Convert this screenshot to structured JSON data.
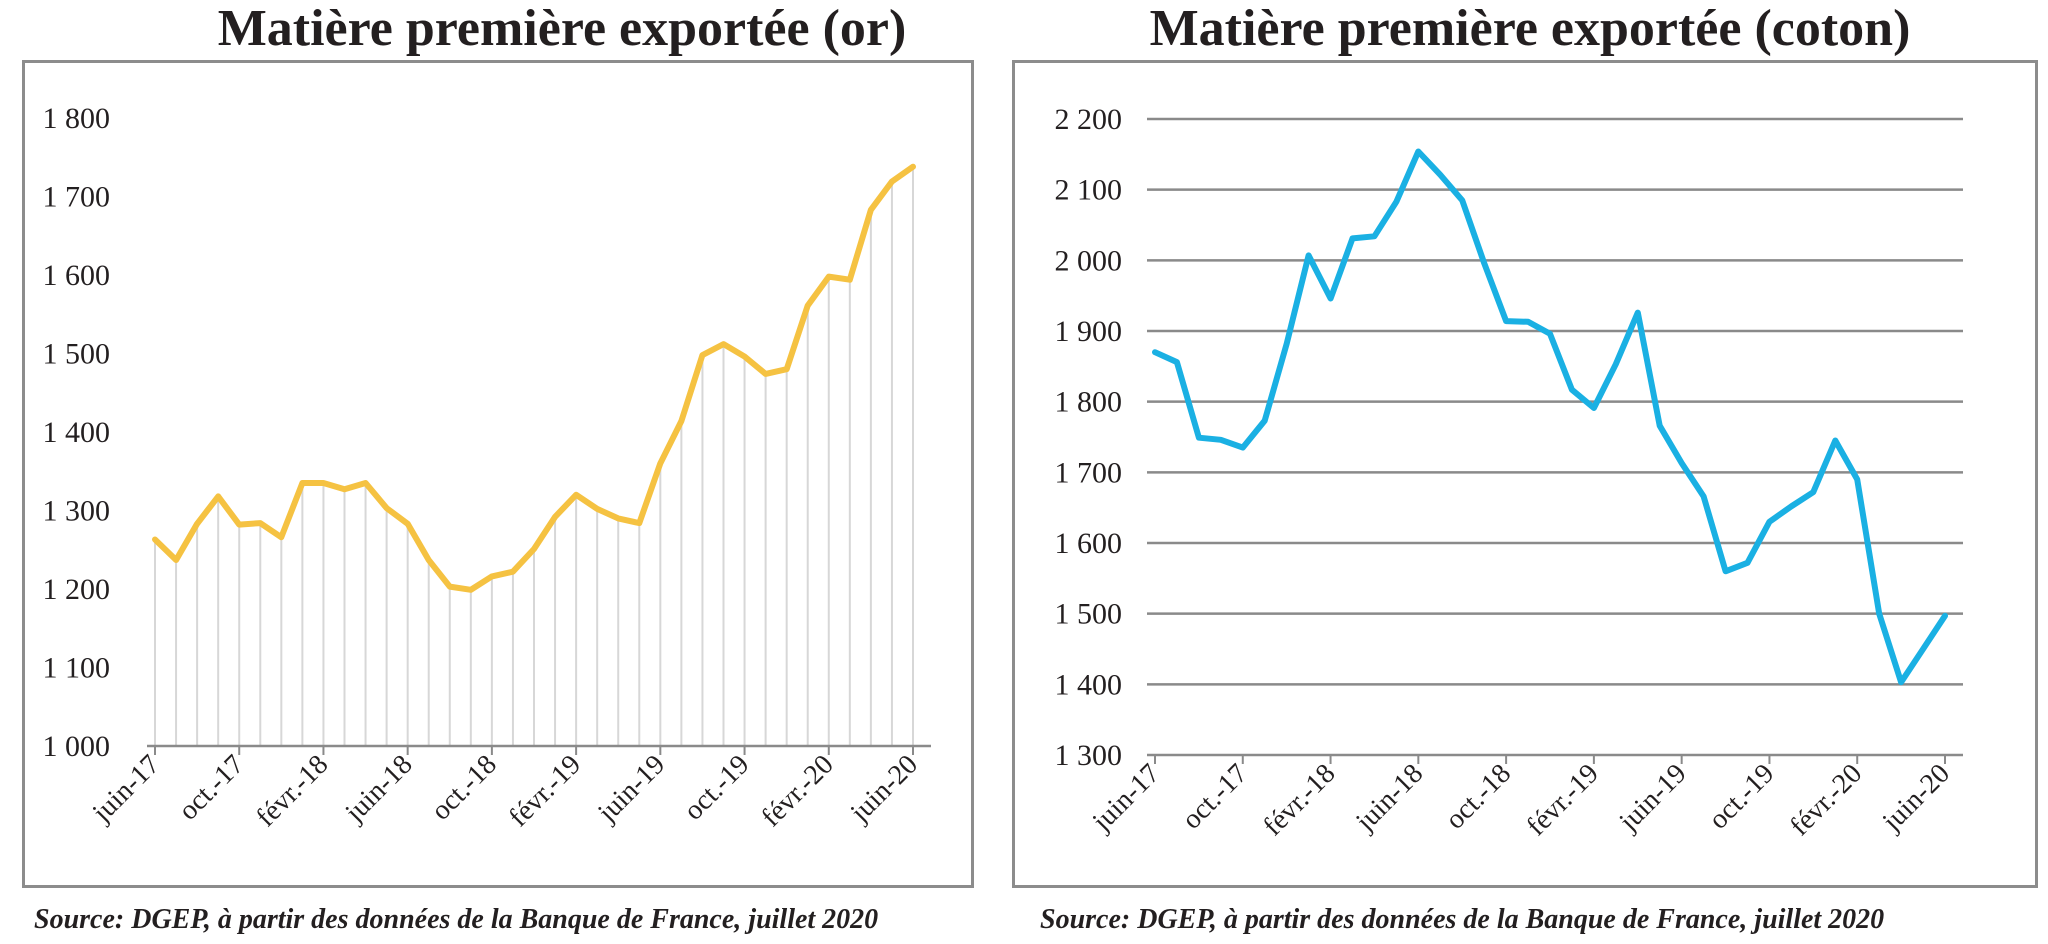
{
  "charts": [
    {
      "title": "Matière première exportée (or)",
      "source": "Source: DGEP, à partir des données de la Banque de France, juillet 2020"
    },
    {
      "title": "Matière première exportée (coton)",
      "source": "Source: DGEP, à partir des données de la Banque de France, juillet 2020"
    }
  ],
  "chart_data": [
    {
      "type": "line",
      "title": "Matière première exportée (or)",
      "xlabel": "",
      "ylabel": "",
      "ylim": [
        1000,
        1800
      ],
      "y_ticks": [
        1000,
        1100,
        1200,
        1300,
        1400,
        1500,
        1600,
        1700,
        1800
      ],
      "y_tick_labels": [
        "1 000",
        "1 100",
        "1 200",
        "1 300",
        "1 400",
        "1 500",
        "1 600",
        "1 700",
        "1 800"
      ],
      "x_tick_labels": [
        "juin-17",
        "oct.-17",
        "févr.-18",
        "juin-18",
        "oct.-18",
        "févr.-19",
        "juin-19",
        "oct.-19",
        "févr.-20",
        "juin-20"
      ],
      "x": [
        "juin-17",
        "juil.-17",
        "août-17",
        "sept.-17",
        "oct.-17",
        "nov.-17",
        "déc.-17",
        "janv.-18",
        "févr.-18",
        "mars-18",
        "avr.-18",
        "mai-18",
        "juin-18",
        "juil.-18",
        "août-18",
        "sept.-18",
        "oct.-18",
        "nov.-18",
        "déc.-18",
        "janv.-19",
        "févr.-19",
        "mars-19",
        "avr.-19",
        "mai-19",
        "juin-19",
        "juil.-19",
        "août-19",
        "sept.-19",
        "oct.-19",
        "nov.-19",
        "déc.-19",
        "janv.-20",
        "févr.-20",
        "mars-20",
        "avr.-20",
        "mai-20",
        "juin-20"
      ],
      "values": [
        1263,
        1237,
        1283,
        1318,
        1282,
        1284,
        1266,
        1335,
        1335,
        1327,
        1335,
        1303,
        1283,
        1237,
        1203,
        1199,
        1216,
        1222,
        1251,
        1292,
        1320,
        1302,
        1290,
        1284,
        1360,
        1414,
        1498,
        1512,
        1496,
        1474,
        1480,
        1561,
        1598,
        1594,
        1683,
        1719,
        1738
      ],
      "color": "#f5c242",
      "drop_lines": true,
      "grid": false
    },
    {
      "type": "line",
      "title": "Matière première exportée (coton)",
      "xlabel": "",
      "ylabel": "",
      "ylim": [
        1300,
        2200
      ],
      "y_ticks": [
        1300,
        1400,
        1500,
        1600,
        1700,
        1800,
        1900,
        2000,
        2100,
        2200
      ],
      "y_tick_labels": [
        "1 300",
        "1 400",
        "1 500",
        "1 600",
        "1 700",
        "1 800",
        "1 900",
        "2 000",
        "2 100",
        "2 200"
      ],
      "x_tick_labels": [
        "juin-17",
        "oct.-17",
        "févr.-18",
        "juin-18",
        "oct.-18",
        "févr.-19",
        "juin-19",
        "oct.-19",
        "févr.-20",
        "juin-20"
      ],
      "x": [
        "juin-17",
        "juil.-17",
        "août-17",
        "sept.-17",
        "oct.-17",
        "nov.-17",
        "déc.-17",
        "janv.-18",
        "févr.-18",
        "mars-18",
        "avr.-18",
        "mai-18",
        "juin-18",
        "juil.-18",
        "août-18",
        "sept.-18",
        "oct.-18",
        "nov.-18",
        "déc.-18",
        "janv.-19",
        "févr.-19",
        "mars-19",
        "avr.-19",
        "mai-19",
        "juin-19",
        "juil.-19",
        "août-19",
        "sept.-19",
        "oct.-19",
        "nov.-19",
        "déc.-19",
        "janv.-20",
        "févr.-20",
        "mars-20",
        "avr.-20",
        "mai-20",
        "juin-20"
      ],
      "values": [
        1870,
        1856,
        1749,
        1746,
        1735,
        1773,
        1882,
        2007,
        1946,
        2031,
        2034,
        2083,
        2154,
        2121,
        2085,
        1996,
        1914,
        1913,
        1896,
        1817,
        1791,
        1853,
        1926,
        1766,
        1713,
        1666,
        1560,
        1572,
        1630,
        1652,
        1672,
        1745,
        1690,
        1500,
        1403,
        1450,
        1497
      ],
      "color": "#1ab0e3",
      "drop_lines": false,
      "grid": true
    }
  ]
}
